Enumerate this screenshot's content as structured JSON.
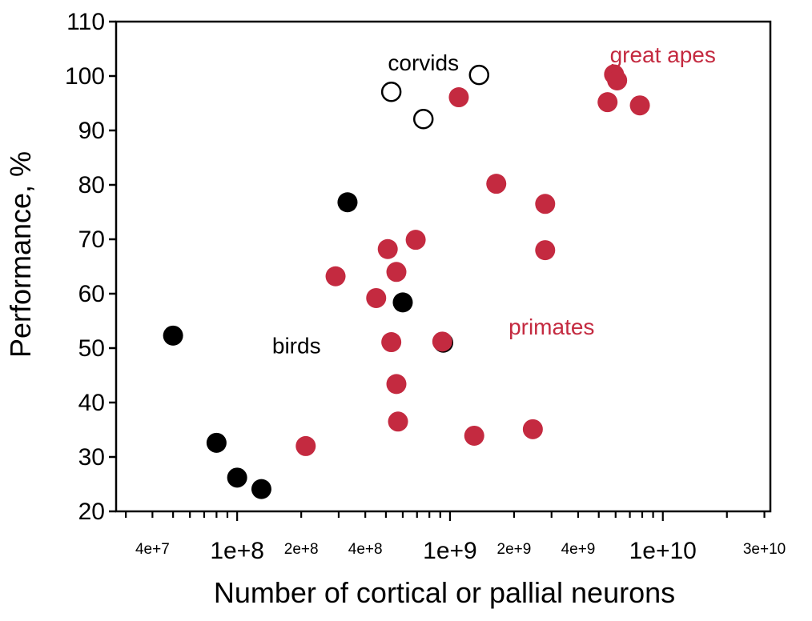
{
  "colors": {
    "birds": "#000000",
    "corvids_fill": "#ffffff",
    "corvids_stroke": "#000000",
    "primates": "#c42a40",
    "axis": "#000000"
  },
  "chart_data": {
    "type": "scatter",
    "title": "",
    "xlabel": "Number of cortical or pallial neurons",
    "ylabel": "Performance, %",
    "x_scale": "log",
    "xlim": [
      27000000,
      32000000000
    ],
    "ylim": [
      20,
      110
    ],
    "y_ticks": [
      "20",
      "30",
      "40",
      "50",
      "60",
      "70",
      "80",
      "90",
      "100",
      "110"
    ],
    "x_tick_labels": [
      {
        "value": 40000000,
        "label": "4e+7",
        "major": false
      },
      {
        "value": 100000000,
        "label": "1e+8",
        "major": true
      },
      {
        "value": 200000000,
        "label": "2e+8",
        "major": false
      },
      {
        "value": 400000000,
        "label": "4e+8",
        "major": false
      },
      {
        "value": 1000000000,
        "label": "1e+9",
        "major": true
      },
      {
        "value": 2000000000,
        "label": "2e+9",
        "major": false
      },
      {
        "value": 4000000000,
        "label": "4e+9",
        "major": false
      },
      {
        "value": 10000000000,
        "label": "1e+10",
        "major": true
      },
      {
        "value": 30000000000,
        "label": "3e+10",
        "major": false
      }
    ],
    "grid": false,
    "series": [
      {
        "name": "birds",
        "style": "filled-black",
        "points": [
          {
            "x": 50000000,
            "y": 52.3
          },
          {
            "x": 80000000,
            "y": 32.6
          },
          {
            "x": 100000000,
            "y": 26.2
          },
          {
            "x": 130000000,
            "y": 24.1
          },
          {
            "x": 330000000,
            "y": 76.8
          },
          {
            "x": 600000000,
            "y": 58.4
          },
          {
            "x": 930000000,
            "y": 51.0
          }
        ]
      },
      {
        "name": "corvids",
        "style": "open-circle",
        "points": [
          {
            "x": 530000000,
            "y": 97.1
          },
          {
            "x": 750000000,
            "y": 92.1
          },
          {
            "x": 1370000000,
            "y": 100.2
          }
        ]
      },
      {
        "name": "primates",
        "style": "filled-red",
        "points": [
          {
            "x": 210000000,
            "y": 32.0
          },
          {
            "x": 290000000,
            "y": 63.2
          },
          {
            "x": 450000000,
            "y": 59.2
          },
          {
            "x": 510000000,
            "y": 68.2
          },
          {
            "x": 530000000,
            "y": 51.1
          },
          {
            "x": 560000000,
            "y": 64.0
          },
          {
            "x": 560000000,
            "y": 43.4
          },
          {
            "x": 570000000,
            "y": 36.5
          },
          {
            "x": 690000000,
            "y": 69.9
          },
          {
            "x": 920000000,
            "y": 51.2
          },
          {
            "x": 1100000000,
            "y": 96.1
          },
          {
            "x": 1300000000,
            "y": 33.9
          },
          {
            "x": 1650000000,
            "y": 80.2
          },
          {
            "x": 2450000000,
            "y": 35.1
          },
          {
            "x": 2800000000,
            "y": 76.5
          },
          {
            "x": 2800000000,
            "y": 68.0
          },
          {
            "x": 5500000000,
            "y": 95.2
          },
          {
            "x": 5900000000,
            "y": 100.3
          },
          {
            "x": 6100000000,
            "y": 99.2
          },
          {
            "x": 7800000000,
            "y": 94.6
          }
        ]
      }
    ],
    "annotations": [
      {
        "text": "corvids",
        "x": 750000000,
        "y": 102.5,
        "color": "#000000"
      },
      {
        "text": "great apes",
        "x": 10000000000,
        "y": 104,
        "color": "#c42a40"
      },
      {
        "text": "birds",
        "x": 190000000,
        "y": 50.5,
        "color": "#000000"
      },
      {
        "text": "primates",
        "x": 3000000000,
        "y": 54,
        "color": "#c42a40"
      }
    ]
  }
}
